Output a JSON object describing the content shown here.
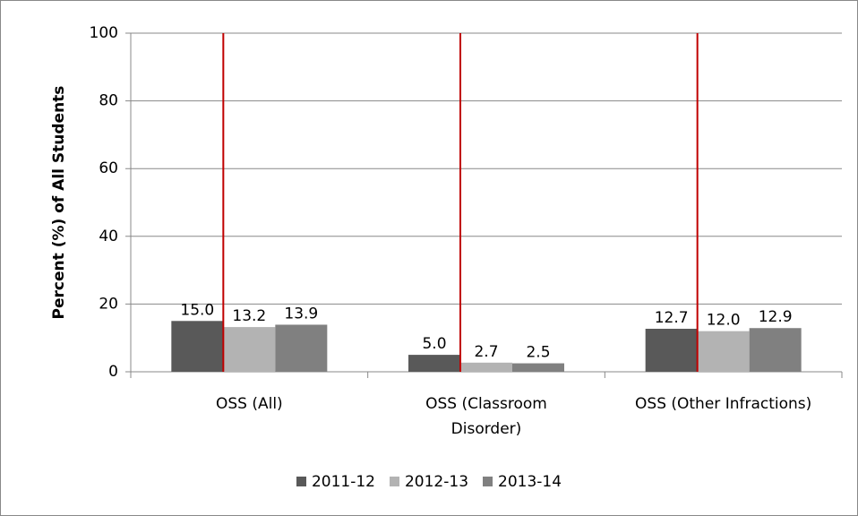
{
  "chart_data": {
    "type": "bar",
    "ylabel": "Percent  (%) of All Students",
    "categories": [
      "OSS (All)",
      "OSS (Classroom\nDisorder)",
      "OSS (Other Infractions)"
    ],
    "series": [
      {
        "name": "2011-12",
        "color": "#595959",
        "values": [
          15.0,
          5.0,
          12.7
        ],
        "value_labels": [
          "15.0",
          "5.0",
          "12.7"
        ]
      },
      {
        "name": "2012-13",
        "color": "#b3b3b3",
        "values": [
          13.2,
          2.7,
          12.0
        ],
        "value_labels": [
          "13.2",
          "2.7",
          "12.0"
        ]
      },
      {
        "name": "2013-14",
        "color": "#808080",
        "values": [
          13.9,
          2.5,
          12.9
        ],
        "value_labels": [
          "13.9",
          "2.5",
          "12.9"
        ]
      }
    ],
    "ylim": [
      0,
      100
    ],
    "yticks": [
      0,
      20,
      40,
      60,
      80,
      100
    ],
    "grid": true,
    "legend": "bottom"
  }
}
